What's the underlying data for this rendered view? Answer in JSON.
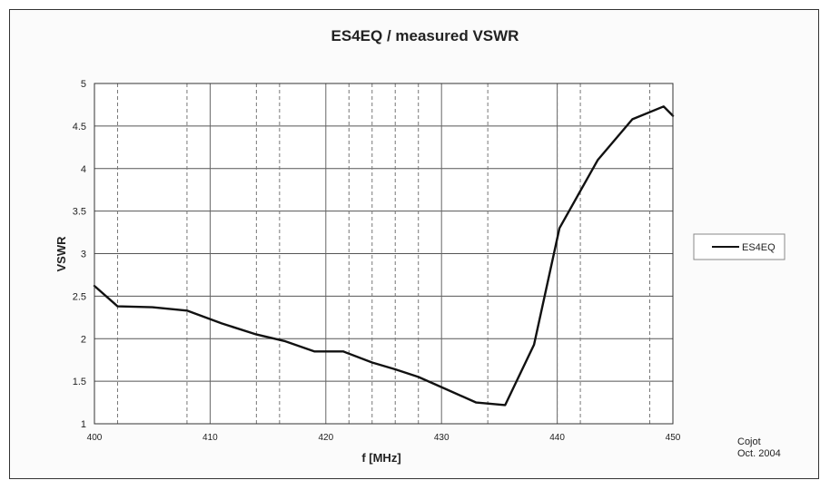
{
  "chart_data": {
    "type": "line",
    "title": "ES4EQ / measured VSWR",
    "xlabel": "f [MHz]",
    "ylabel": "VSWR",
    "xlim": [
      400,
      450
    ],
    "ylim": [
      1,
      5
    ],
    "x_ticks": [
      400,
      410,
      420,
      430,
      440,
      450
    ],
    "y_ticks": [
      1,
      1.5,
      2,
      2.5,
      3,
      3.5,
      4,
      4.5,
      5
    ],
    "x_tick_labels": [
      "400",
      "410",
      "420",
      "430",
      "440",
      "450"
    ],
    "y_tick_labels": [
      "1",
      "1.5",
      "2",
      "2.5",
      "3",
      "3.5",
      "4",
      "4.5",
      "5"
    ],
    "minor_x_grid": [
      402,
      408,
      414,
      416,
      422,
      424,
      426,
      428,
      434,
      440,
      442,
      448
    ],
    "grid": true,
    "legend_position": "right",
    "series": [
      {
        "name": "ES4EQ",
        "color": "#111111",
        "x": [
          400,
          402,
          405,
          408,
          411,
          414,
          416.5,
          419,
          421.5,
          424,
          426,
          428,
          430.5,
          433,
          435.5,
          438,
          440.2,
          443.5,
          446.5,
          449.2,
          450
        ],
        "y": [
          2.62,
          2.38,
          2.37,
          2.33,
          2.18,
          2.05,
          1.97,
          1.85,
          1.85,
          1.72,
          1.64,
          1.55,
          1.4,
          1.25,
          1.22,
          1.93,
          3.3,
          4.1,
          4.58,
          4.73,
          4.62
        ]
      }
    ]
  },
  "annotation": {
    "line1": "Cojot",
    "line2": "Oct. 2004"
  }
}
